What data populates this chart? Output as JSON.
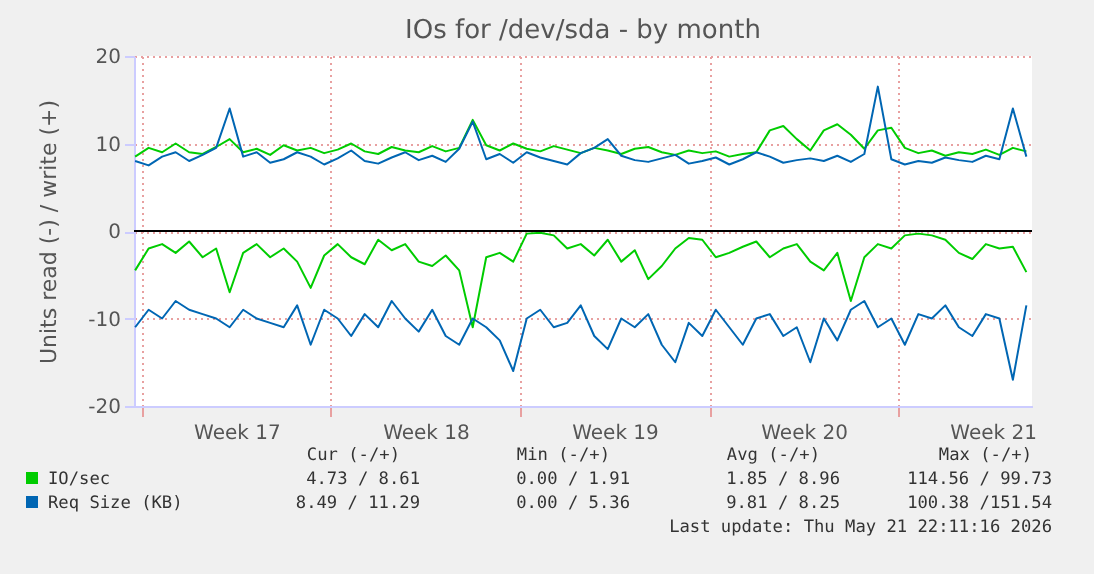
{
  "chart_data": {
    "type": "line",
    "title": "IOs for /dev/sda - by month",
    "ylabel": "Units read (-) / write (+)",
    "x": [
      "2026-04-19T18:00",
      "2026-04-20T06:00",
      "2026-04-20T18:00",
      "2026-04-21T06:00",
      "2026-04-21T18:00",
      "2026-04-22T06:00",
      "2026-04-22T18:00",
      "2026-04-23T06:00",
      "2026-04-23T18:00",
      "2026-04-24T06:00",
      "2026-04-24T18:00",
      "2026-04-25T06:00",
      "2026-04-25T18:00",
      "2026-04-26T06:00",
      "2026-04-26T18:00",
      "2026-04-27T06:00",
      "2026-04-27T18:00",
      "2026-04-28T06:00",
      "2026-04-28T18:00",
      "2026-04-29T06:00",
      "2026-04-29T18:00",
      "2026-04-30T06:00",
      "2026-04-30T18:00",
      "2026-05-01T06:00",
      "2026-05-01T18:00",
      "2026-05-02T06:00",
      "2026-05-02T18:00",
      "2026-05-03T06:00",
      "2026-05-03T18:00",
      "2026-05-04T06:00",
      "2026-05-04T18:00",
      "2026-05-05T06:00",
      "2026-05-05T18:00",
      "2026-05-06T06:00",
      "2026-05-06T18:00",
      "2026-05-07T06:00",
      "2026-05-07T18:00",
      "2026-05-08T06:00",
      "2026-05-08T18:00",
      "2026-05-09T06:00",
      "2026-05-09T18:00",
      "2026-05-10T06:00",
      "2026-05-10T18:00",
      "2026-05-11T06:00",
      "2026-05-11T18:00",
      "2026-05-12T06:00",
      "2026-05-12T18:00",
      "2026-05-13T06:00",
      "2026-05-13T18:00",
      "2026-05-14T06:00",
      "2026-05-14T18:00",
      "2026-05-15T06:00",
      "2026-05-15T18:00",
      "2026-05-16T06:00",
      "2026-05-16T18:00",
      "2026-05-17T06:00",
      "2026-05-17T18:00",
      "2026-05-18T06:00",
      "2026-05-18T18:00",
      "2026-05-19T06:00",
      "2026-05-19T18:00",
      "2026-05-20T06:00",
      "2026-05-20T18:00",
      "2026-05-21T06:00",
      "2026-05-21T18:00",
      "2026-05-22T06:00",
      "2026-05-22T18:00"
    ],
    "series": [
      {
        "name": "IO/sec",
        "color": "#00cc00",
        "values": [
          8.5,
          9.5,
          9,
          10,
          9,
          8.8,
          9.6,
          10.5,
          9,
          9.4,
          8.7,
          9.8,
          9.2,
          9.5,
          8.9,
          9.3,
          10,
          9.1,
          8.8,
          9.6,
          9.2,
          9,
          9.7,
          9.1,
          9.5,
          12.7,
          9.8,
          9.2,
          10,
          9.4,
          9.1,
          9.7,
          9.3,
          8.9,
          9.5,
          9.2,
          8.8,
          9.4,
          9.6,
          9,
          8.7,
          9.2,
          8.9,
          9.1,
          8.5,
          8.8,
          9,
          11.5,
          12,
          10.5,
          9.2,
          11.5,
          12.2,
          11,
          9.4,
          11.5,
          11.8,
          9.5,
          8.9,
          9.2,
          8.6,
          9,
          8.8,
          9.3,
          8.7,
          9.5,
          9.1
        ]
      },
      {
        "color": "#00cc00",
        "values": [
          -4.5,
          -2,
          -1.5,
          -2.5,
          -1.2,
          -3,
          -2,
          -7,
          -2.5,
          -1.5,
          -3,
          -2,
          -3.5,
          -6.5,
          -2.8,
          -1.5,
          -3,
          -3.8,
          -1,
          -2.2,
          -1.5,
          -3.5,
          -4,
          -2.8,
          -4.5,
          -11,
          -3,
          -2.5,
          -3.5,
          -0.3,
          -0.2,
          -0.5,
          -2,
          -1.5,
          -2.8,
          -1,
          -3.5,
          -2.2,
          -5.5,
          -4,
          -2,
          -0.8,
          -1,
          -3,
          -2.5,
          -1.8,
          -1.2,
          -3,
          -2,
          -1.5,
          -3.5,
          -4.5,
          -2.5,
          -8,
          -3,
          -1.5,
          -2,
          -0.5,
          -0.3,
          -0.5,
          -1,
          -2.5,
          -3.2,
          -1.5,
          -2,
          -1.8,
          -4.7
        ]
      },
      {
        "name": "Req Size (KB)",
        "color": "#0066b3",
        "values": [
          8,
          7.5,
          8.5,
          9,
          8,
          8.7,
          9.5,
          14,
          8.5,
          9,
          7.8,
          8.2,
          9,
          8.5,
          7.6,
          8.3,
          9.2,
          8,
          7.7,
          8.4,
          9,
          8.1,
          8.6,
          7.9,
          9.4,
          12.5,
          8.2,
          8.8,
          7.8,
          9,
          8.4,
          8,
          7.6,
          8.9,
          9.5,
          10.5,
          8.6,
          8.1,
          7.9,
          8.3,
          8.7,
          7.7,
          8,
          8.4,
          7.6,
          8.2,
          9,
          8.5,
          7.8,
          8.1,
          8.3,
          8,
          8.6,
          7.9,
          8.8,
          16.5,
          8.2,
          7.6,
          8,
          7.8,
          8.4,
          8.1,
          7.9,
          8.6,
          8.2,
          14,
          8.5
        ]
      },
      {
        "color": "#0066b3",
        "values": [
          -11,
          -9,
          -10,
          -8,
          -9,
          -9.5,
          -10,
          -11,
          -9,
          -10,
          -10.5,
          -11,
          -8.5,
          -13,
          -9,
          -10,
          -12,
          -9.5,
          -11,
          -8,
          -10,
          -11.5,
          -9,
          -12,
          -13,
          -10,
          -11,
          -12.5,
          -16,
          -10,
          -9,
          -11,
          -10.5,
          -8.5,
          -12,
          -13.5,
          -10,
          -11,
          -9.5,
          -13,
          -15,
          -10.5,
          -12,
          -9,
          -11,
          -13,
          -10,
          -9.5,
          -12,
          -11,
          -15,
          -10,
          -12.5,
          -9,
          -8,
          -11,
          -10,
          -13,
          -9.5,
          -10,
          -8.5,
          -11,
          -12,
          -9.5,
          -10,
          -17,
          -8.5
        ]
      }
    ],
    "xlim": [
      "2026-04-19T17:00",
      "2026-05-22T23:00"
    ],
    "xticks": [
      {
        "value": "2026-04-20T00:00",
        "label": null
      },
      {
        "value": "2026-04-23T12:00",
        "label": "Week 17"
      },
      {
        "value": "2026-04-27T00:00",
        "label": null
      },
      {
        "value": "2026-04-30T12:00",
        "label": "Week 18"
      },
      {
        "value": "2026-05-04T00:00",
        "label": null
      },
      {
        "value": "2026-05-07T12:00",
        "label": "Week 19"
      },
      {
        "value": "2026-05-11T00:00",
        "label": null
      },
      {
        "value": "2026-05-14T12:00",
        "label": "Week 20"
      },
      {
        "value": "2026-05-18T00:00",
        "label": null
      },
      {
        "value": "2026-05-21T12:00",
        "label": "Week 21"
      }
    ],
    "ylim": [
      -20,
      20
    ],
    "yticks": [
      -20,
      -10,
      0,
      10,
      20
    ],
    "ref_lines": [
      {
        "axis": "y",
        "value": 0,
        "color": "#000000"
      }
    ],
    "grid": true,
    "legend": "bottom",
    "annotations": [
      "Cur (-/+)",
      "Min (-/+)",
      "Avg (-/+)",
      "Max (-/+)",
      "4.73 / 8.61",
      "0.00 / 1.91",
      "1.85 / 8.96",
      "114.56 / 99.73",
      "8.49 / 11.29",
      "0.00 / 5.36",
      "9.81 / 8.25",
      "100.38 /151.54",
      "Last update: Thu May 21 22:11:16 2026"
    ]
  }
}
